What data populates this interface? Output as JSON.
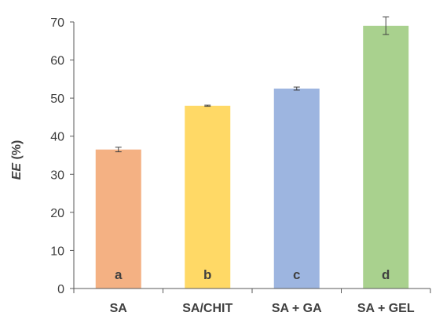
{
  "chart_data": {
    "type": "bar",
    "title": "",
    "xlabel": "",
    "ylabel_italic": "EE",
    "ylabel_suffix": " (%)",
    "ylim": [
      0,
      70
    ],
    "yticks": [
      0,
      10,
      20,
      30,
      40,
      50,
      60,
      70
    ],
    "grid": false,
    "legend": "none",
    "categories": [
      "SA",
      "SA/CHIT",
      "SA + GA",
      "SA + GEL"
    ],
    "values": [
      36.5,
      48.0,
      52.5,
      69.0
    ],
    "errors": [
      0.6,
      0.15,
      0.4,
      2.3
    ],
    "annotations": [
      "a",
      "b",
      "c",
      "d"
    ],
    "colors": [
      "#F4B183",
      "#FFD966",
      "#9DB5E0",
      "#A9D18E"
    ],
    "axis_color": "#595959",
    "error_color": "#404040"
  }
}
